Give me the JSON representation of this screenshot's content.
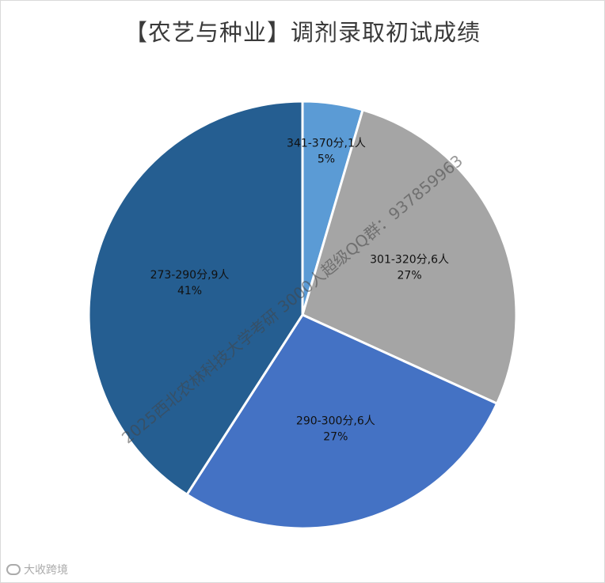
{
  "chart_data": {
    "type": "pie",
    "title": "【农艺与种业】调剂录取初试成绩",
    "slices": [
      {
        "label": "341-370分,1人",
        "value": 1,
        "percent": "5%",
        "color": "#5b9bd5"
      },
      {
        "label": "301-320分,6人",
        "value": 6,
        "percent": "27%",
        "color": "#a5a5a5"
      },
      {
        "label": "290-300分,6人",
        "value": 6,
        "percent": "27%",
        "color": "#4472c4"
      },
      {
        "label": "273-290分,9人",
        "value": 9,
        "percent": "41%",
        "color": "#255e91"
      }
    ],
    "start_angle_deg": 0,
    "direction": "clockwise",
    "legend": "none"
  },
  "watermark": "2025西北农林科技大学考研 3000人超级QQ群：937859963",
  "logo_text": "大收跨境"
}
